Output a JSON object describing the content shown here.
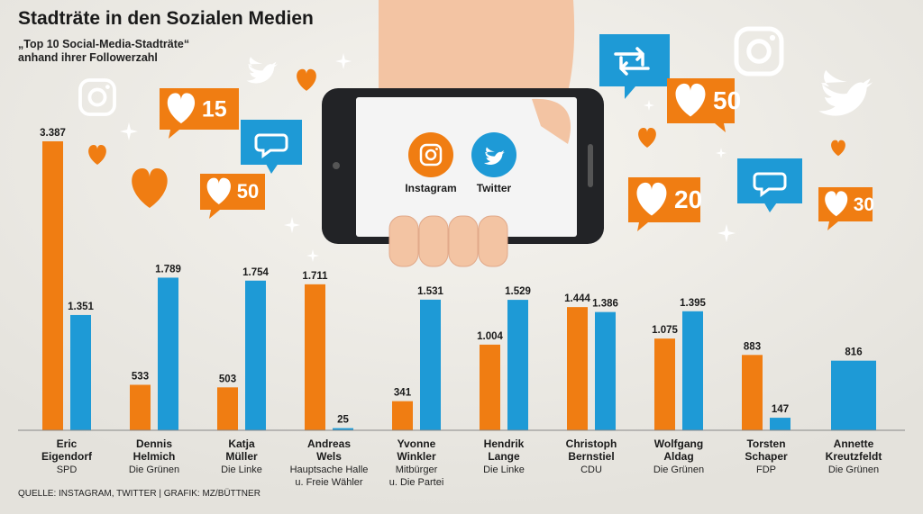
{
  "header": {
    "title": "Stadträte in den Sozialen Medien",
    "subtitle_line1": "„Top 10 Social-Media-Stadträte“",
    "subtitle_line2": "anhand ihrer Followerzahl"
  },
  "phone": {
    "instagram_label": "Instagram",
    "twitter_label": "Twitter"
  },
  "badges": {
    "b15": "15",
    "b50a": "50",
    "b50b": "50",
    "b20": "20",
    "b30": "30"
  },
  "source": "QUELLE: INSTAGRAM, TWITTER | GRAFIK: MZ/BÜTTNER",
  "colors": {
    "instagram": "#f07d12",
    "twitter": "#1e9ad6",
    "background": "#e8e6e0"
  },
  "chart_data": {
    "type": "bar",
    "title": "Stadträte in den Sozialen Medien",
    "subtitle": "„Top 10 Social-Media-Stadträte“ anhand ihrer Followerzahl",
    "legend_position": "top-center",
    "grid": false,
    "ylim": [
      0,
      3387
    ],
    "categories": [
      {
        "name_lines": [
          "Eric",
          "Eigendorf"
        ],
        "party_lines": [
          "SPD"
        ]
      },
      {
        "name_lines": [
          "Dennis",
          "Helmich"
        ],
        "party_lines": [
          "Die Grünen"
        ]
      },
      {
        "name_lines": [
          "Katja",
          "Müller"
        ],
        "party_lines": [
          "Die Linke"
        ]
      },
      {
        "name_lines": [
          "Andreas",
          "Wels"
        ],
        "party_lines": [
          "Hauptsache Halle",
          "u. Freie Wähler"
        ]
      },
      {
        "name_lines": [
          "Yvonne",
          "Winkler"
        ],
        "party_lines": [
          "Mitbürger",
          "u. Die Partei"
        ]
      },
      {
        "name_lines": [
          "Hendrik",
          "Lange"
        ],
        "party_lines": [
          "Die Linke"
        ]
      },
      {
        "name_lines": [
          "Christoph",
          "Bernstiel"
        ],
        "party_lines": [
          "CDU"
        ]
      },
      {
        "name_lines": [
          "Wolfgang",
          "Aldag"
        ],
        "party_lines": [
          "Die Grünen"
        ]
      },
      {
        "name_lines": [
          "Torsten",
          "Schaper"
        ],
        "party_lines": [
          "FDP"
        ]
      },
      {
        "name_lines": [
          "Annette",
          "Kreutzfeldt"
        ],
        "party_lines": [
          "Die Grünen"
        ]
      }
    ],
    "series": [
      {
        "name": "Instagram",
        "color": "#f07d12",
        "values": [
          3387,
          533,
          503,
          1711,
          341,
          1004,
          1444,
          1075,
          883,
          null
        ],
        "labels": [
          "3.387",
          "533",
          "503",
          "1.711",
          "341",
          "1.004",
          "1.444",
          "1.075",
          "883",
          ""
        ]
      },
      {
        "name": "Twitter",
        "color": "#1e9ad6",
        "values": [
          1351,
          1789,
          1754,
          25,
          1531,
          1529,
          1386,
          1395,
          147,
          816
        ],
        "labels": [
          "1.351",
          "1.789",
          "1.754",
          "25",
          "1.531",
          "1.529",
          "1.386",
          "1.395",
          "147",
          "816"
        ]
      }
    ]
  }
}
